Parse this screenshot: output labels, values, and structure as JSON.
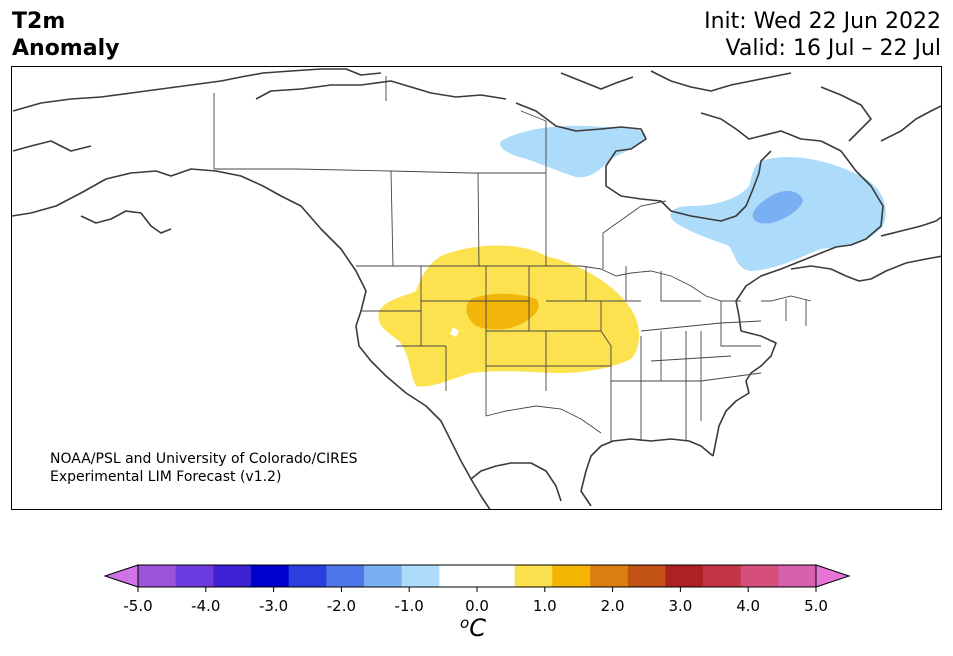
{
  "header": {
    "variable": "T2m",
    "subtitle": "Anomaly",
    "init": "Init: Wed 22 Jun 2022",
    "valid": "Valid: 16 Jul – 22 Jul"
  },
  "credit": {
    "line1": "NOAA/PSL and University of Colorado/CIRES",
    "line2": "Experimental LIM Forecast (v1.2)"
  },
  "colorbar": {
    "unit_sup": "o",
    "unit": "C",
    "colors": [
      "#d173e6",
      "#9b53dc",
      "#6b3be0",
      "#3d21d3",
      "#0000cc",
      "#2b3fdd",
      "#4f76e8",
      "#79b0f3",
      "#acdcfa",
      "#ffffff",
      "#ffffff",
      "#fbe04d",
      "#f3b500",
      "#dd7f10",
      "#c25216",
      "#ad2125",
      "#c43645",
      "#d54f7a",
      "#d861ad",
      "#e876d8"
    ],
    "ticks": [
      "-5.0",
      "-4.0",
      "-3.0",
      "-2.0",
      "-1.0",
      "0.0",
      "1.0",
      "2.0",
      "3.0",
      "4.0",
      "5.0"
    ]
  },
  "anomaly_regions": [
    {
      "region": "Central US / Northern Plains",
      "level": "+0.5 to +1.0",
      "color": "#fde24f"
    },
    {
      "region": "Wyoming / South Dakota core",
      "level": "+1.0 to +1.5",
      "color": "#f2b50a"
    },
    {
      "region": "Northern Ontario / Hudson Bay",
      "level": "-1.0 to -0.5",
      "color": "#acdcfa"
    },
    {
      "region": "Quebec / Labrador",
      "level": "-1.0 to -0.5",
      "color": "#acdcfa"
    },
    {
      "region": "Central Quebec core",
      "level": "-1.5 to -1.0",
      "color": "#79b0f3"
    }
  ]
}
